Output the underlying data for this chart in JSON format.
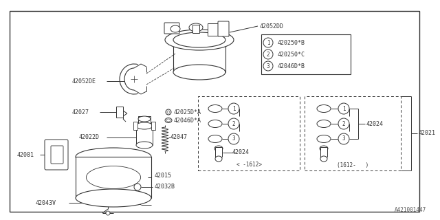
{
  "bg_color": "#ffffff",
  "border_color": "#333333",
  "line_color": "#333333",
  "text_color": "#333333",
  "part_number_watermark": "A421001447",
  "fig_width": 6.4,
  "fig_height": 3.2,
  "dpi": 100,
  "legend_items": [
    {
      "num": "1",
      "text": "420250*B"
    },
    {
      "num": "2",
      "text": "420250*C"
    },
    {
      "num": "3",
      "text": "42046D*B"
    }
  ]
}
